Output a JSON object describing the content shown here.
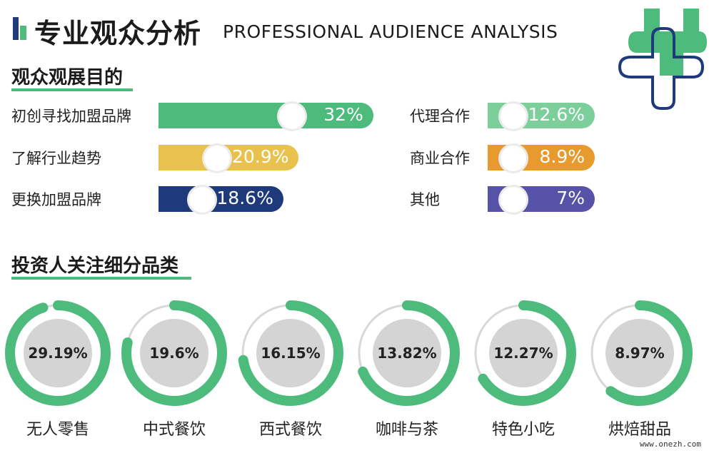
{
  "header": {
    "title_cn": "专业观众分析",
    "title_en": "PROFESSIONAL AUDIENCE ANALYSIS"
  },
  "colors": {
    "green": "#4cbb7b",
    "light_green": "#7ccf9a",
    "yellow": "#e9c14d",
    "orange": "#e79b2e",
    "navy": "#1f3a7a",
    "purple": "#5652a8",
    "ring_track": "#d8d8d8",
    "ring_inner": "#d4d4d4"
  },
  "section_purpose": {
    "title": "观众观展目的"
  },
  "section_invest": {
    "title": "投资人关注细分品类"
  },
  "chart_data": [
    {
      "type": "bar",
      "title": "观众观展目的",
      "categories": [
        "初创寻找加盟品牌",
        "了解行业趋势",
        "更换加盟品牌",
        "代理合作",
        "商业合作",
        "其他"
      ],
      "values": [
        32,
        20.9,
        18.6,
        12.6,
        8.9,
        7
      ],
      "value_labels": [
        "32%",
        "20.9%",
        "18.6%",
        "12.6%",
        "8.9%",
        "7%"
      ],
      "bar_colors": [
        "#4cbb7b",
        "#e9c14d",
        "#1f3a7a",
        "#7ccf9a",
        "#e79b2e",
        "#5652a8"
      ],
      "unit": "%"
    },
    {
      "type": "pie",
      "title": "投资人关注细分品类",
      "categories": [
        "无人零售",
        "中式餐饮",
        "西式餐饮",
        "咖啡与茶",
        "特色小吃",
        "烘焙甜品"
      ],
      "values": [
        29.19,
        19.6,
        16.15,
        13.82,
        12.27,
        8.97
      ],
      "value_labels": [
        "29.19%",
        "19.6%",
        "16.15%",
        "13.82%",
        "12.27%",
        "8.97%"
      ],
      "unit": "%"
    }
  ],
  "footer": {
    "watermark": "www.onezh.com"
  }
}
